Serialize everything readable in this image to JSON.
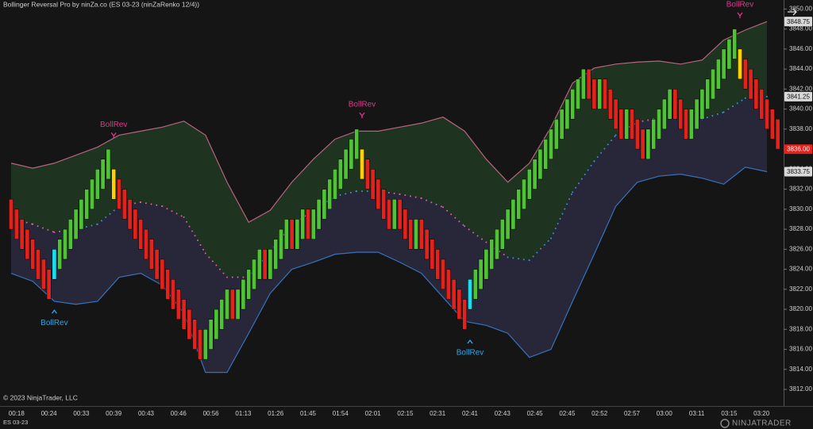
{
  "chart_data": {
    "type": "candlestick",
    "title": "Bollinger Reversal Pro by ninZa.co (ES 03-23 (ninZaRenko 12/4))",
    "copyright": "© 2023 NinjaTrader, LLC",
    "instrument": "ES 03-23",
    "logo": "NINJATRADER",
    "categories": [
      null,
      "00:18",
      null,
      null,
      null,
      null,
      null,
      "00:24",
      null,
      null,
      null,
      null,
      null,
      "00:33",
      null,
      null,
      null,
      null,
      null,
      "00:39",
      null,
      null,
      null,
      null,
      null,
      "00:43",
      null,
      null,
      null,
      null,
      null,
      "00:46",
      null,
      null,
      null,
      null,
      null,
      "00:56",
      null,
      null,
      null,
      null,
      null,
      "01:13",
      null,
      null,
      null,
      null,
      null,
      "01:26",
      null,
      null,
      null,
      null,
      null,
      "01:45",
      null,
      null,
      null,
      null,
      null,
      "01:54",
      null,
      null,
      null,
      null,
      null,
      "02:01",
      null,
      null,
      null,
      null,
      null,
      "02:15",
      null,
      null,
      null,
      null,
      null,
      "02:31",
      null,
      null,
      null,
      null,
      null,
      "02:41",
      null,
      null,
      null,
      null,
      null,
      "02:43",
      null,
      null,
      null,
      null,
      null,
      "02:45",
      null,
      null,
      null,
      null,
      null,
      "02:45",
      null,
      null,
      null,
      null,
      null,
      "02:52",
      null,
      null,
      null,
      null,
      null,
      "02:57",
      null,
      null,
      null,
      null,
      null,
      "03:00",
      null,
      null,
      null,
      null,
      null,
      "03:11",
      null,
      null,
      null,
      null,
      null,
      "03:15",
      null,
      null,
      null,
      null,
      null,
      "03:20",
      null,
      null,
      null
    ],
    "open": [
      3831,
      3830,
      3829,
      3828,
      3827,
      3826,
      3825,
      3824,
      3823,
      3824,
      3825,
      3826,
      3827,
      3828,
      3829,
      3830,
      3831,
      3832,
      3833,
      3834,
      3833,
      3832,
      3831,
      3830,
      3829,
      3828,
      3827,
      3826,
      3825,
      3824,
      3823,
      3822,
      3821,
      3820,
      3819,
      3818,
      3815,
      3816,
      3817,
      3818,
      3819,
      3822,
      3819,
      3820,
      3821,
      3822,
      3823,
      3826,
      3823,
      3824,
      3825,
      3826,
      3829,
      3826,
      3827,
      3830,
      3827,
      3828,
      3829,
      3830,
      3831,
      3832,
      3833,
      3834,
      3835,
      3836,
      3835,
      3834,
      3833,
      3832,
      3831,
      3828,
      3831,
      3830,
      3829,
      3826,
      3829,
      3828,
      3827,
      3826,
      3825,
      3824,
      3823,
      3822,
      3821,
      3820,
      3821,
      3822,
      3823,
      3824,
      3825,
      3826,
      3827,
      3828,
      3829,
      3830,
      3831,
      3832,
      3833,
      3834,
      3835,
      3836,
      3837,
      3838,
      3839,
      3840,
      3841,
      3844,
      3843,
      3840,
      3843,
      3842,
      3841,
      3840,
      3837,
      3840,
      3839,
      3838,
      3835,
      3836,
      3837,
      3838,
      3839,
      3842,
      3841,
      3840,
      3837,
      3838,
      3839,
      3840,
      3841,
      3842,
      3843,
      3844,
      3845,
      3846,
      3845,
      3844,
      3843,
      3842,
      3841,
      3840,
      3839
    ],
    "close": [
      3828,
      3827,
      3826,
      3825,
      3824,
      3823,
      3822,
      3821,
      3826,
      3827,
      3828,
      3829,
      3830,
      3831,
      3832,
      3833,
      3834,
      3835,
      3836,
      3831,
      3830,
      3829,
      3828,
      3827,
      3826,
      3825,
      3824,
      3823,
      3822,
      3821,
      3820,
      3819,
      3818,
      3817,
      3816,
      3815,
      3818,
      3819,
      3820,
      3821,
      3822,
      3819,
      3822,
      3823,
      3824,
      3825,
      3826,
      3823,
      3826,
      3827,
      3828,
      3829,
      3826,
      3829,
      3830,
      3827,
      3830,
      3831,
      3832,
      3833,
      3834,
      3835,
      3836,
      3837,
      3838,
      3833,
      3832,
      3831,
      3830,
      3829,
      3828,
      3831,
      3828,
      3827,
      3826,
      3829,
      3826,
      3825,
      3824,
      3823,
      3822,
      3821,
      3820,
      3819,
      3818,
      3823,
      3824,
      3825,
      3826,
      3827,
      3828,
      3829,
      3830,
      3831,
      3832,
      3833,
      3834,
      3835,
      3836,
      3837,
      3838,
      3839,
      3840,
      3841,
      3842,
      3843,
      3844,
      3841,
      3840,
      3843,
      3840,
      3839,
      3838,
      3837,
      3840,
      3837,
      3836,
      3835,
      3838,
      3839,
      3840,
      3841,
      3842,
      3839,
      3838,
      3837,
      3840,
      3841,
      3842,
      3843,
      3844,
      3845,
      3846,
      3847,
      3848,
      3843,
      3842,
      3841,
      3840,
      3839,
      3838,
      3837,
      3836
    ],
    "up_color": "#4fc236",
    "down_color": "#e3231b",
    "ylim": [
      3810.5,
      3850.9
    ],
    "yticks": [
      {
        "value": 3812,
        "label": "3812.00"
      },
      {
        "value": 3814,
        "label": "3814.00"
      },
      {
        "value": 3816,
        "label": "3816.00"
      },
      {
        "value": 3818,
        "label": "3818.00"
      },
      {
        "value": 3820,
        "label": "3820.00"
      },
      {
        "value": 3822,
        "label": "3822.00"
      },
      {
        "value": 3824,
        "label": "3824.00"
      },
      {
        "value": 3826,
        "label": "3826.00"
      },
      {
        "value": 3828,
        "label": "3828.00"
      },
      {
        "value": 3830,
        "label": "3830.00"
      },
      {
        "value": 3832,
        "label": "3832.00"
      },
      {
        "value": 3834,
        "label": "3834.00"
      },
      {
        "value": 3836,
        "label": "3836.00"
      },
      {
        "value": 3838,
        "label": "3838.00"
      },
      {
        "value": 3840,
        "label": "3840.00"
      },
      {
        "value": 3842,
        "label": "3842.00"
      },
      {
        "value": 3844,
        "label": "3844.00"
      },
      {
        "value": 3846,
        "label": "3846.00"
      },
      {
        "value": 3848,
        "label": "3848.00"
      },
      {
        "value": 3850,
        "label": "3850.00"
      }
    ],
    "bands": {
      "x": [
        0,
        4,
        8,
        12,
        16,
        20,
        24,
        28,
        32,
        36,
        40,
        44,
        48,
        52,
        56,
        60,
        64,
        68,
        72,
        76,
        80,
        84,
        88,
        92,
        96,
        100,
        104,
        108,
        112,
        116,
        120,
        124,
        128,
        132,
        136,
        140
      ],
      "upper": {
        "color": "#b8647f",
        "fill": "#1f3321",
        "values": [
          3834.6,
          3834.1,
          3834.6,
          3835.4,
          3836.2,
          3837.4,
          3837.8,
          3838.2,
          3838.8,
          3837.4,
          3832.7,
          3828.7,
          3829.9,
          3832.7,
          3835,
          3837,
          3837.8,
          3837.8,
          3838.2,
          3838.6,
          3839.2,
          3837.8,
          3835,
          3832.7,
          3834.6,
          3838.2,
          3842.6,
          3844.1,
          3844.5,
          3844.7,
          3844.8,
          3844.5,
          3844.9,
          3846.9,
          3847.9,
          3848.75
        ]
      },
      "middle": {
        "above_color": "#e0609f",
        "below_color": "#3d8fd8",
        "values": [
          3829.1,
          3828.5,
          3827.7,
          3828,
          3828.5,
          3830.3,
          3830.7,
          3830.3,
          3829.2,
          3825.6,
          3823.2,
          3823.2,
          3825.8,
          3828.4,
          3829.9,
          3831.3,
          3831.8,
          3831.8,
          3831.5,
          3831.1,
          3830.2,
          3828.3,
          3826.7,
          3825.2,
          3824.9,
          3827.1,
          3831.7,
          3834.8,
          3837.4,
          3838.7,
          3839.1,
          3839,
          3839,
          3839.7,
          3841.1,
          3841.25
        ]
      },
      "lower": {
        "color": "#3573bd",
        "fill": "#28273a",
        "values": [
          3823.6,
          3822.8,
          3820.8,
          3820.5,
          3820.8,
          3823.2,
          3823.6,
          3822.4,
          3819.6,
          3813.7,
          3813.7,
          3817.6,
          3821.6,
          3824,
          3824.7,
          3825.5,
          3825.7,
          3825.7,
          3824.7,
          3823.6,
          3821.2,
          3818.8,
          3818.4,
          3817.6,
          3815.2,
          3816,
          3820.8,
          3825.5,
          3830.3,
          3832.7,
          3833.3,
          3833.5,
          3833.1,
          3832.5,
          3834.2,
          3833.75
        ]
      }
    },
    "signals": [
      {
        "label": "BollRev",
        "index": 8,
        "position": "below",
        "color": "#2fa6e6",
        "bar_color": "#19def0"
      },
      {
        "label": "BollRev",
        "index": 19,
        "position": "above",
        "color": "#e0368e",
        "bar_color": "#ffd000"
      },
      {
        "label": "BollRev",
        "index": 65,
        "position": "above",
        "color": "#e0368e",
        "bar_color": "#ffd000"
      },
      {
        "label": "BollRev",
        "index": 85,
        "position": "below",
        "color": "#2fa6e6",
        "bar_color": "#19def0"
      },
      {
        "label": "BollRev",
        "index": 135,
        "position": "above",
        "color": "#e0368e",
        "bar_color": "#ffd000"
      }
    ],
    "price_markers": [
      {
        "value": 3848.75,
        "label": "3848.75",
        "color": "#d9d9d9",
        "text_color": "#111111"
      },
      {
        "value": 3841.25,
        "label": "3841.25",
        "color": "#d9d9d9",
        "text_color": "#111111"
      },
      {
        "value": 3836,
        "label": "3836.00",
        "color": "#e3231b",
        "text_color": "#ffffff"
      },
      {
        "value": 3833.75,
        "label": "3833.75",
        "color": "#d9d9d9",
        "text_color": "#111111"
      }
    ]
  }
}
